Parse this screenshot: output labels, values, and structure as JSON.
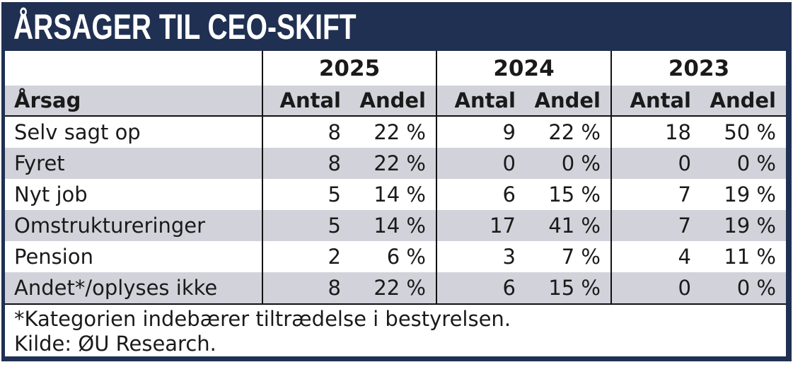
{
  "title": "ÅRSAGER TIL CEO-SKIFT",
  "colors": {
    "navy_header": "#203052",
    "row_stripe_gray": "#d2d2da",
    "grid_line": "#111111",
    "text": "#1a1a1a"
  },
  "table": {
    "category_header": "Årsag",
    "year_headers": [
      "2025",
      "2024",
      "2023"
    ],
    "sub_headers": [
      "Antal",
      "Andel"
    ],
    "rows": [
      {
        "label": "Selv sagt op",
        "cells": [
          "8",
          "22 %",
          "9",
          "22 %",
          "18",
          "50 %"
        ]
      },
      {
        "label": "Fyret",
        "cells": [
          "8",
          "22 %",
          "0",
          "0 %",
          "0",
          "0 %"
        ]
      },
      {
        "label": "Nyt job",
        "cells": [
          "5",
          "14 %",
          "6",
          "15 %",
          "7",
          "19 %"
        ]
      },
      {
        "label": "Omstruktureringer",
        "cells": [
          "5",
          "14 %",
          "17",
          "41 %",
          "7",
          "19 %"
        ]
      },
      {
        "label": "Pension",
        "cells": [
          "2",
          "6 %",
          "3",
          "7 %",
          "4",
          "11 %"
        ]
      },
      {
        "label": "Andet*/oplyses ikke",
        "cells": [
          "8",
          "22 %",
          "6",
          "15 %",
          "0",
          "0 %"
        ]
      }
    ]
  },
  "footnotes": [
    "*Kategorien indebærer tiltrædelse i bestyrelsen.",
    "Kilde: ØU Research."
  ],
  "chart_data": {
    "type": "table",
    "title": "Årsager til CEO-skift",
    "categories": [
      "Selv sagt op",
      "Fyret",
      "Nyt job",
      "Omstruktureringer",
      "Pension",
      "Andet*/oplyses ikke"
    ],
    "series": [
      {
        "name": "2025 Antal",
        "values": [
          8,
          8,
          5,
          5,
          2,
          8
        ]
      },
      {
        "name": "2025 Andel %",
        "values": [
          22,
          22,
          14,
          14,
          6,
          22
        ]
      },
      {
        "name": "2024 Antal",
        "values": [
          9,
          0,
          6,
          17,
          3,
          6
        ]
      },
      {
        "name": "2024 Andel %",
        "values": [
          22,
          0,
          15,
          41,
          7,
          15
        ]
      },
      {
        "name": "2023 Antal",
        "values": [
          18,
          0,
          7,
          7,
          4,
          0
        ]
      },
      {
        "name": "2023 Andel %",
        "values": [
          50,
          0,
          19,
          19,
          11,
          0
        ]
      }
    ],
    "source": "Kilde: ØU Research."
  }
}
